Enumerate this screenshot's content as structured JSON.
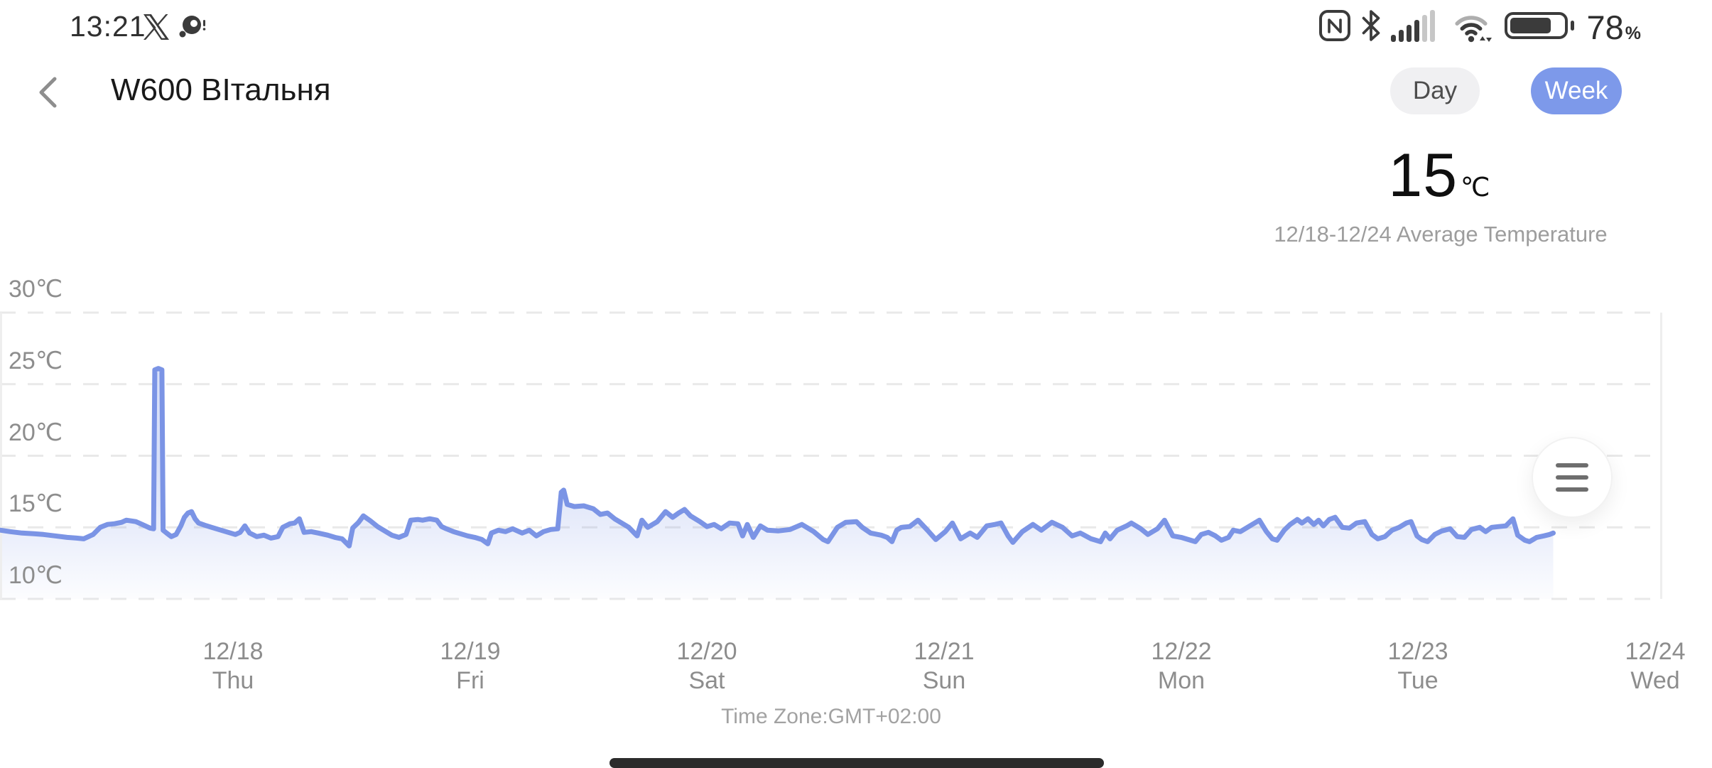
{
  "accent": "#7d99ea",
  "status_bar": {
    "time": "13:21",
    "battery": {
      "percent": "78",
      "unit": "%"
    },
    "icons": [
      "x-app",
      "screen-record",
      "nfc",
      "bluetooth",
      "signal",
      "wifi",
      "battery"
    ]
  },
  "header": {
    "title": "W600 ВІтальня",
    "toggle": {
      "day_label": "Day",
      "week_label": "Week",
      "selected": "week"
    }
  },
  "summary": {
    "value": "15",
    "unit": "℃",
    "caption": "12/18-12/24 Average Temperature"
  },
  "chart_data": {
    "type": "area",
    "legend": null,
    "grid": "horizontal-dashed",
    "footer": "Time Zone:GMT+02:00",
    "y_axis": {
      "unit": "℃",
      "ticks": [
        30,
        25,
        20,
        15,
        10
      ],
      "ylim": [
        10,
        30
      ]
    },
    "x_axis": {
      "xlim_days": [
        -0.983,
        6.03
      ],
      "ticks": [
        {
          "date": "12/18",
          "weekday": "Thu",
          "day": 0
        },
        {
          "date": "12/19",
          "weekday": "Fri",
          "day": 1
        },
        {
          "date": "12/20",
          "weekday": "Sat",
          "day": 2
        },
        {
          "date": "12/21",
          "weekday": "Sun",
          "day": 3
        },
        {
          "date": "12/22",
          "weekday": "Mon",
          "day": 4
        },
        {
          "date": "12/23",
          "weekday": "Tue",
          "day": 5
        },
        {
          "date": "12/24",
          "weekday": "Wed",
          "day": 6
        }
      ]
    },
    "colors": {
      "line": "#7b94e5",
      "fill_top": "rgba(124,149,230,0.30)",
      "fill_bottom": "rgba(124,149,230,0.02)",
      "grid": "#e9e9e9",
      "border": "#eeeeee"
    },
    "series": [
      {
        "name": "Temperature",
        "unit": "℃",
        "x_unit": "days since 12/18 00:00 GMT+2",
        "points": [
          [
            -0.98,
            14.8
          ],
          [
            -0.94,
            14.7
          ],
          [
            -0.89,
            14.6
          ],
          [
            -0.84,
            14.55
          ],
          [
            -0.8,
            14.5
          ],
          [
            -0.75,
            14.4
          ],
          [
            -0.7,
            14.3
          ],
          [
            -0.66,
            14.25
          ],
          [
            -0.63,
            14.2
          ],
          [
            -0.59,
            14.5
          ],
          [
            -0.56,
            15.0
          ],
          [
            -0.53,
            15.2
          ],
          [
            -0.5,
            15.25
          ],
          [
            -0.47,
            15.35
          ],
          [
            -0.45,
            15.5
          ],
          [
            -0.43,
            15.45
          ],
          [
            -0.41,
            15.4
          ],
          [
            -0.39,
            15.25
          ],
          [
            -0.37,
            15.1
          ],
          [
            -0.35,
            14.95
          ],
          [
            -0.335,
            14.9
          ],
          [
            -0.33,
            26.0
          ],
          [
            -0.315,
            26.1
          ],
          [
            -0.3,
            26.0
          ],
          [
            -0.295,
            14.8
          ],
          [
            -0.28,
            14.6
          ],
          [
            -0.26,
            14.35
          ],
          [
            -0.24,
            14.5
          ],
          [
            -0.22,
            15.1
          ],
          [
            -0.205,
            15.7
          ],
          [
            -0.19,
            16.0
          ],
          [
            -0.175,
            16.1
          ],
          [
            -0.16,
            15.6
          ],
          [
            -0.145,
            15.3
          ],
          [
            -0.12,
            15.15
          ],
          [
            -0.09,
            15.0
          ],
          [
            -0.05,
            14.8
          ],
          [
            -0.02,
            14.65
          ],
          [
            0.01,
            14.5
          ],
          [
            0.03,
            14.65
          ],
          [
            0.05,
            15.1
          ],
          [
            0.07,
            14.6
          ],
          [
            0.1,
            14.35
          ],
          [
            0.13,
            14.45
          ],
          [
            0.16,
            14.25
          ],
          [
            0.19,
            14.35
          ],
          [
            0.21,
            15.0
          ],
          [
            0.24,
            15.25
          ],
          [
            0.26,
            15.3
          ],
          [
            0.28,
            15.6
          ],
          [
            0.3,
            14.65
          ],
          [
            0.33,
            14.7
          ],
          [
            0.36,
            14.6
          ],
          [
            0.4,
            14.45
          ],
          [
            0.43,
            14.3
          ],
          [
            0.46,
            14.2
          ],
          [
            0.49,
            13.7
          ],
          [
            0.505,
            14.95
          ],
          [
            0.53,
            15.35
          ],
          [
            0.55,
            15.8
          ],
          [
            0.58,
            15.45
          ],
          [
            0.61,
            15.05
          ],
          [
            0.64,
            14.75
          ],
          [
            0.67,
            14.45
          ],
          [
            0.7,
            14.3
          ],
          [
            0.73,
            14.5
          ],
          [
            0.75,
            15.5
          ],
          [
            0.78,
            15.55
          ],
          [
            0.8,
            15.5
          ],
          [
            0.83,
            15.6
          ],
          [
            0.86,
            15.5
          ],
          [
            0.88,
            15.05
          ],
          [
            0.9,
            14.9
          ],
          [
            0.93,
            14.7
          ],
          [
            0.96,
            14.55
          ],
          [
            0.99,
            14.4
          ],
          [
            1.02,
            14.3
          ],
          [
            1.05,
            14.15
          ],
          [
            1.075,
            13.85
          ],
          [
            1.09,
            14.6
          ],
          [
            1.12,
            14.8
          ],
          [
            1.15,
            14.7
          ],
          [
            1.18,
            14.9
          ],
          [
            1.22,
            14.6
          ],
          [
            1.25,
            14.8
          ],
          [
            1.28,
            14.4
          ],
          [
            1.31,
            14.7
          ],
          [
            1.34,
            14.85
          ],
          [
            1.37,
            14.9
          ],
          [
            1.385,
            17.45
          ],
          [
            1.395,
            17.6
          ],
          [
            1.41,
            16.6
          ],
          [
            1.44,
            16.45
          ],
          [
            1.48,
            16.5
          ],
          [
            1.52,
            16.3
          ],
          [
            1.55,
            15.9
          ],
          [
            1.58,
            16.0
          ],
          [
            1.61,
            15.6
          ],
          [
            1.64,
            15.3
          ],
          [
            1.67,
            15.0
          ],
          [
            1.705,
            14.4
          ],
          [
            1.725,
            15.5
          ],
          [
            1.75,
            15.0
          ],
          [
            1.79,
            15.4
          ],
          [
            1.825,
            16.1
          ],
          [
            1.855,
            15.7
          ],
          [
            1.88,
            16.0
          ],
          [
            1.905,
            16.25
          ],
          [
            1.93,
            15.8
          ],
          [
            1.97,
            15.4
          ],
          [
            2.0,
            15.05
          ],
          [
            2.03,
            15.2
          ],
          [
            2.06,
            14.9
          ],
          [
            2.095,
            15.3
          ],
          [
            2.13,
            15.25
          ],
          [
            2.15,
            14.4
          ],
          [
            2.17,
            15.2
          ],
          [
            2.195,
            14.3
          ],
          [
            2.225,
            15.1
          ],
          [
            2.255,
            14.8
          ],
          [
            2.3,
            14.75
          ],
          [
            2.35,
            14.85
          ],
          [
            2.4,
            15.2
          ],
          [
            2.45,
            14.7
          ],
          [
            2.49,
            14.15
          ],
          [
            2.51,
            14.0
          ],
          [
            2.53,
            14.5
          ],
          [
            2.55,
            15.0
          ],
          [
            2.585,
            15.35
          ],
          [
            2.63,
            15.4
          ],
          [
            2.655,
            15.0
          ],
          [
            2.69,
            14.6
          ],
          [
            2.735,
            14.45
          ],
          [
            2.76,
            14.3
          ],
          [
            2.78,
            14.0
          ],
          [
            2.8,
            14.8
          ],
          [
            2.82,
            15.0
          ],
          [
            2.855,
            15.05
          ],
          [
            2.89,
            15.5
          ],
          [
            2.93,
            14.8
          ],
          [
            2.965,
            14.15
          ],
          [
            3.005,
            14.7
          ],
          [
            3.035,
            15.3
          ],
          [
            3.07,
            14.2
          ],
          [
            3.11,
            14.6
          ],
          [
            3.14,
            14.3
          ],
          [
            3.18,
            15.1
          ],
          [
            3.215,
            15.2
          ],
          [
            3.24,
            15.3
          ],
          [
            3.27,
            14.4
          ],
          [
            3.29,
            13.95
          ],
          [
            3.33,
            14.7
          ],
          [
            3.375,
            15.2
          ],
          [
            3.41,
            14.8
          ],
          [
            3.455,
            15.35
          ],
          [
            3.5,
            15.0
          ],
          [
            3.54,
            14.4
          ],
          [
            3.575,
            14.6
          ],
          [
            3.62,
            14.2
          ],
          [
            3.66,
            14.0
          ],
          [
            3.68,
            14.6
          ],
          [
            3.7,
            14.2
          ],
          [
            3.73,
            14.8
          ],
          [
            3.77,
            15.1
          ],
          [
            3.79,
            15.3
          ],
          [
            3.83,
            14.9
          ],
          [
            3.86,
            14.5
          ],
          [
            3.9,
            14.9
          ],
          [
            3.93,
            15.5
          ],
          [
            3.965,
            14.4
          ],
          [
            4.0,
            14.3
          ],
          [
            4.04,
            14.1
          ],
          [
            4.06,
            14.0
          ],
          [
            4.085,
            14.5
          ],
          [
            4.115,
            14.65
          ],
          [
            4.145,
            14.4
          ],
          [
            4.17,
            14.1
          ],
          [
            4.2,
            14.3
          ],
          [
            4.22,
            14.8
          ],
          [
            4.25,
            14.7
          ],
          [
            4.28,
            15.0
          ],
          [
            4.3,
            15.2
          ],
          [
            4.33,
            15.5
          ],
          [
            4.36,
            14.7
          ],
          [
            4.385,
            14.2
          ],
          [
            4.405,
            14.1
          ],
          [
            4.435,
            14.8
          ],
          [
            4.46,
            15.2
          ],
          [
            4.49,
            15.55
          ],
          [
            4.51,
            15.3
          ],
          [
            4.535,
            15.6
          ],
          [
            4.56,
            15.2
          ],
          [
            4.58,
            15.5
          ],
          [
            4.6,
            15.1
          ],
          [
            4.625,
            15.55
          ],
          [
            4.65,
            15.7
          ],
          [
            4.68,
            15.0
          ],
          [
            4.71,
            14.95
          ],
          [
            4.74,
            15.3
          ],
          [
            4.775,
            15.4
          ],
          [
            4.805,
            14.5
          ],
          [
            4.83,
            14.2
          ],
          [
            4.86,
            14.35
          ],
          [
            4.89,
            14.8
          ],
          [
            4.92,
            15.0
          ],
          [
            4.95,
            15.3
          ],
          [
            4.97,
            15.4
          ],
          [
            4.995,
            14.4
          ],
          [
            5.015,
            14.15
          ],
          [
            5.04,
            14.0
          ],
          [
            5.07,
            14.5
          ],
          [
            5.1,
            14.75
          ],
          [
            5.135,
            14.9
          ],
          [
            5.165,
            14.35
          ],
          [
            5.195,
            14.3
          ],
          [
            5.225,
            14.85
          ],
          [
            5.26,
            15.0
          ],
          [
            5.285,
            14.7
          ],
          [
            5.31,
            15.0
          ],
          [
            5.34,
            15.05
          ],
          [
            5.37,
            15.1
          ],
          [
            5.4,
            15.6
          ],
          [
            5.42,
            14.45
          ],
          [
            5.45,
            14.1
          ],
          [
            5.47,
            14.0
          ],
          [
            5.5,
            14.3
          ],
          [
            5.53,
            14.4
          ],
          [
            5.555,
            14.5
          ],
          [
            5.57,
            14.6
          ]
        ]
      }
    ]
  }
}
